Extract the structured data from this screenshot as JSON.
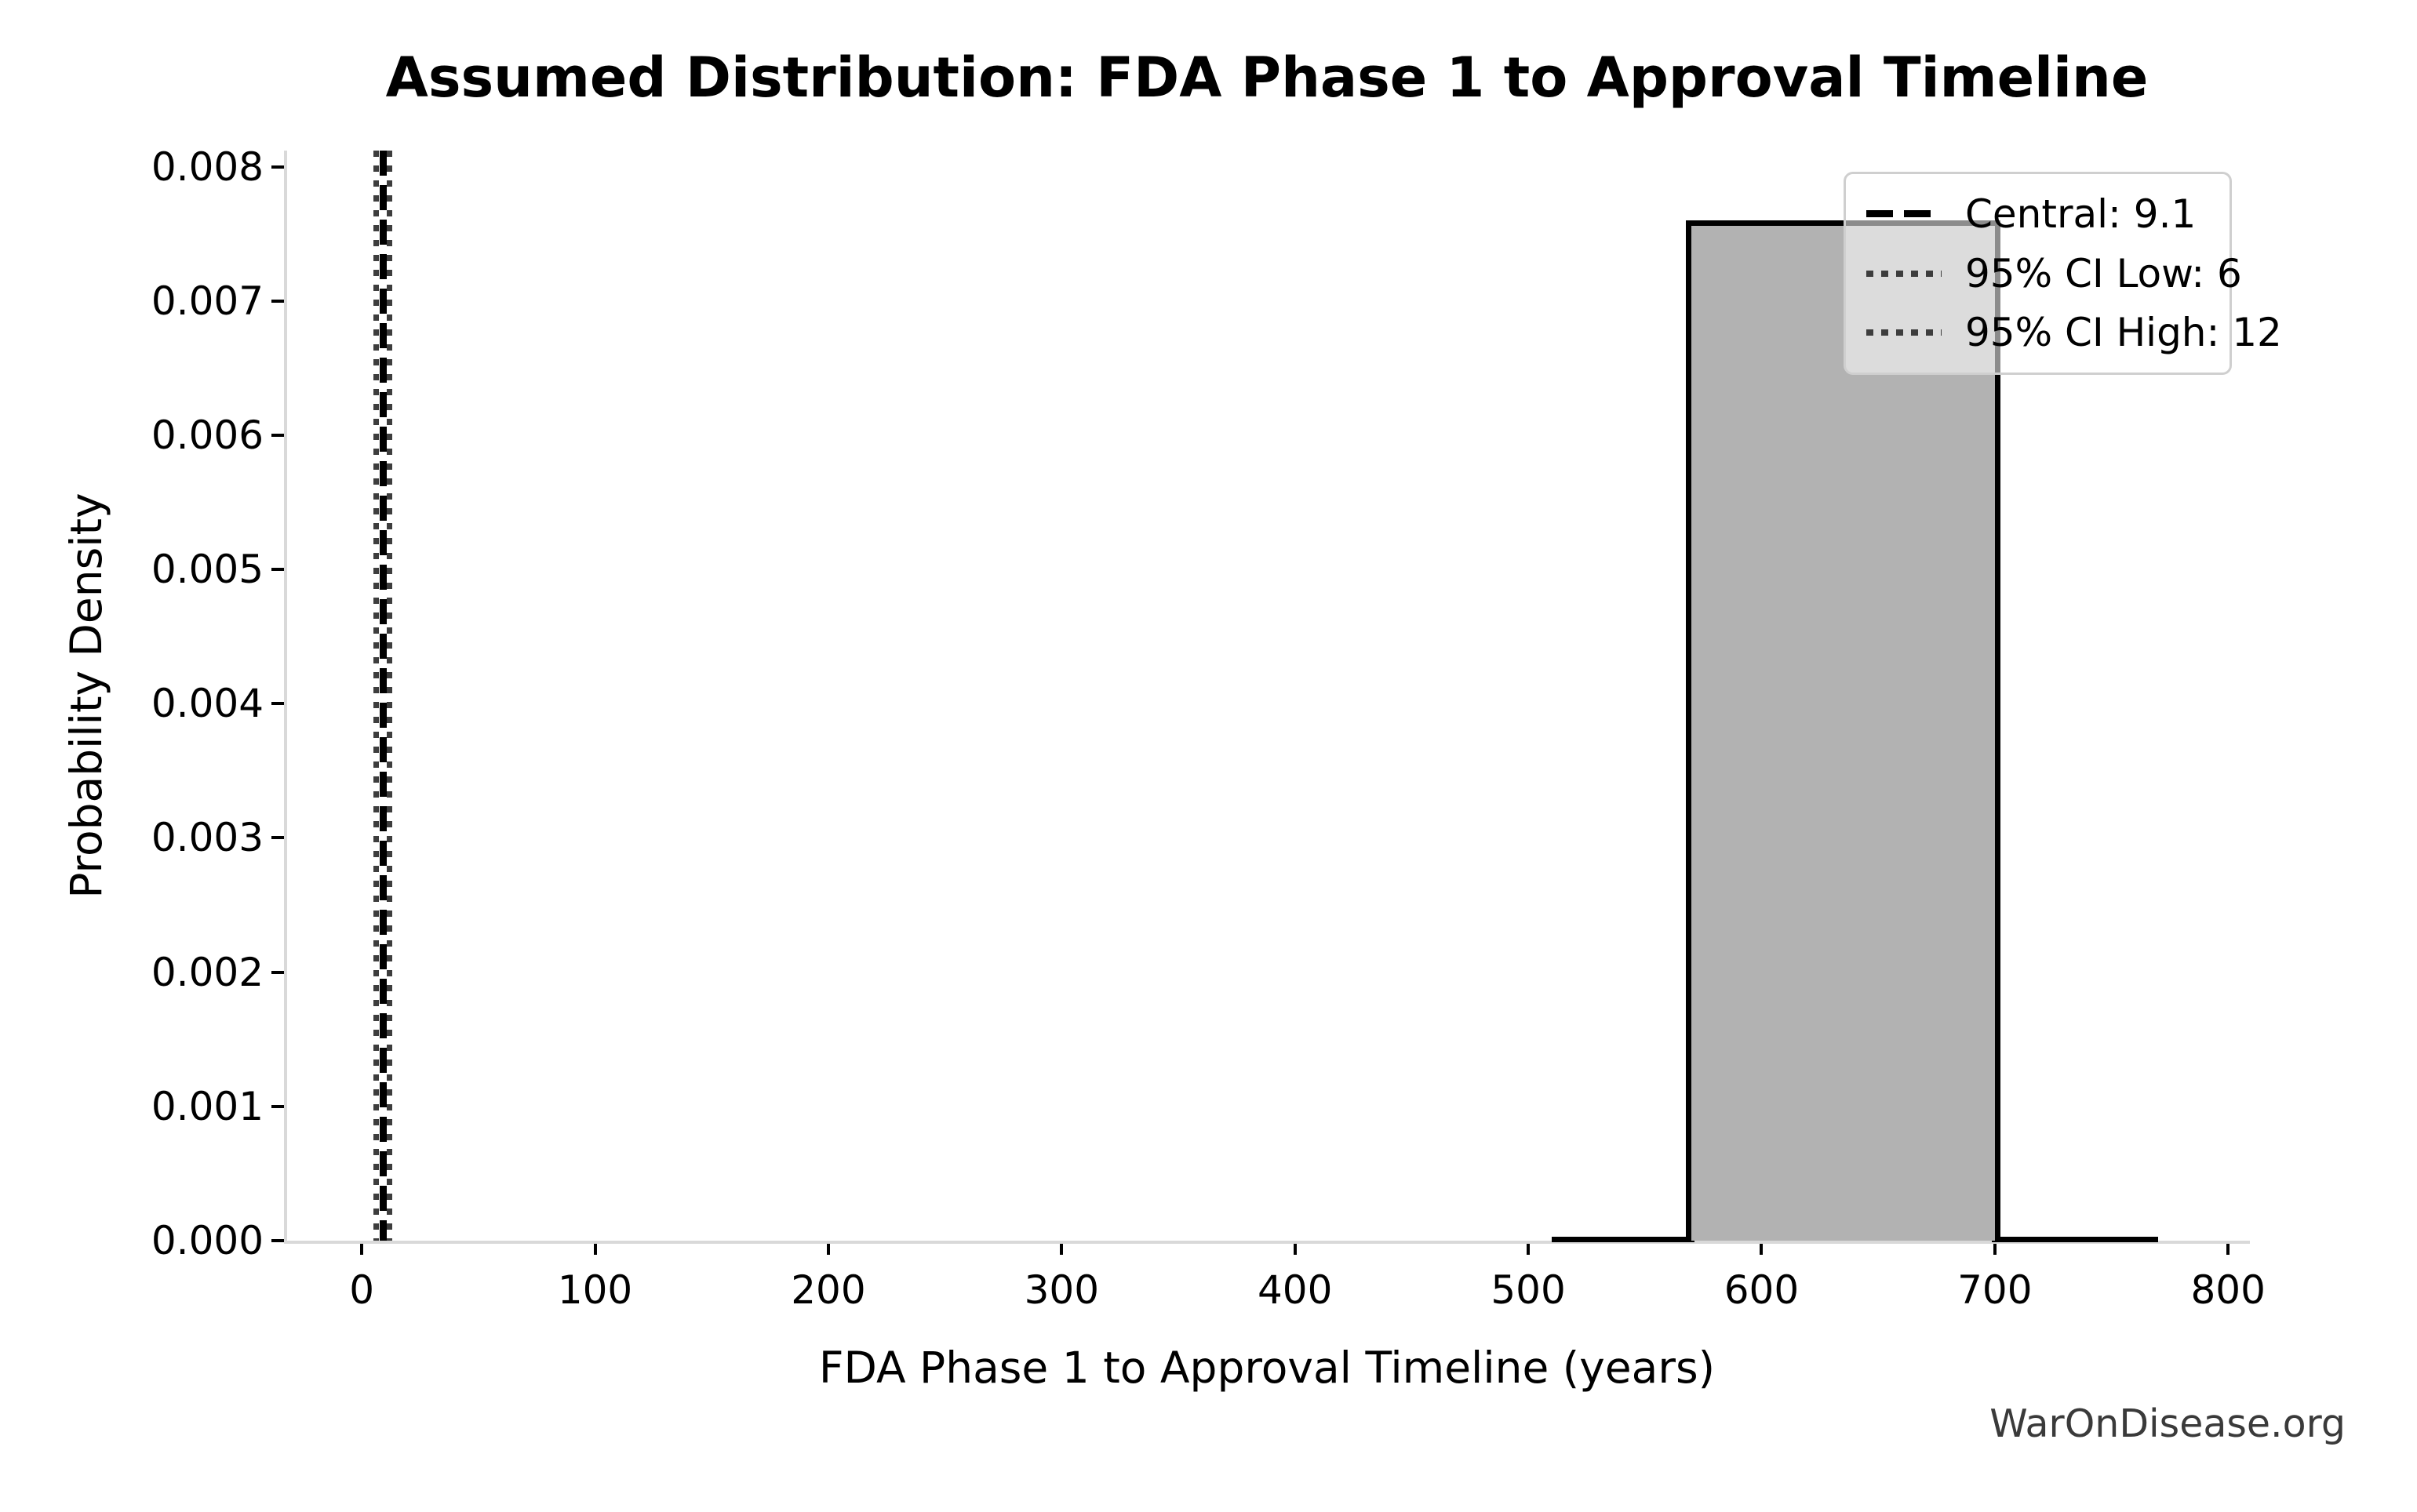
{
  "chart_data": {
    "type": "bar",
    "title": "Assumed Distribution: FDA Phase 1 to Approval Timeline",
    "xlabel": "FDA Phase 1 to Approval Timeline (years)",
    "ylabel": "Probability Density",
    "watermark": "WarOnDisease.org",
    "xlim": [
      -32,
      808
    ],
    "ylim": [
      0,
      0.00812
    ],
    "xticks": [
      0,
      100,
      200,
      300,
      400,
      500,
      600,
      700,
      800
    ],
    "yticks": [
      0.0,
      0.001,
      0.002,
      0.003,
      0.004,
      0.005,
      0.006,
      0.007,
      0.008
    ],
    "grid": false,
    "legend_position": "upper right",
    "bar": {
      "x_start": 570,
      "x_end": 700,
      "density": 0.0076
    },
    "baseline": {
      "x_start": 510,
      "x_end": 770,
      "level": 0
    },
    "vlines": [
      {
        "label": "Central: 9.1",
        "x": 9.1,
        "style": "dashed",
        "color": "#000000",
        "width": 9
      },
      {
        "label": "95% CI Low: 6",
        "x": 6,
        "style": "dotted",
        "color": "#3d3d3d",
        "width": 7
      },
      {
        "label": "95% CI High: 12",
        "x": 12,
        "style": "dotted",
        "color": "#3d3d3d",
        "width": 7
      }
    ],
    "colors": {
      "bar_fill": "#b2b2b2",
      "bar_edge": "#000000",
      "spine": "#d9d9d9",
      "tick": "#000000",
      "legend_border": "#cfcfcf",
      "watermark": "#3a3a3a"
    }
  }
}
